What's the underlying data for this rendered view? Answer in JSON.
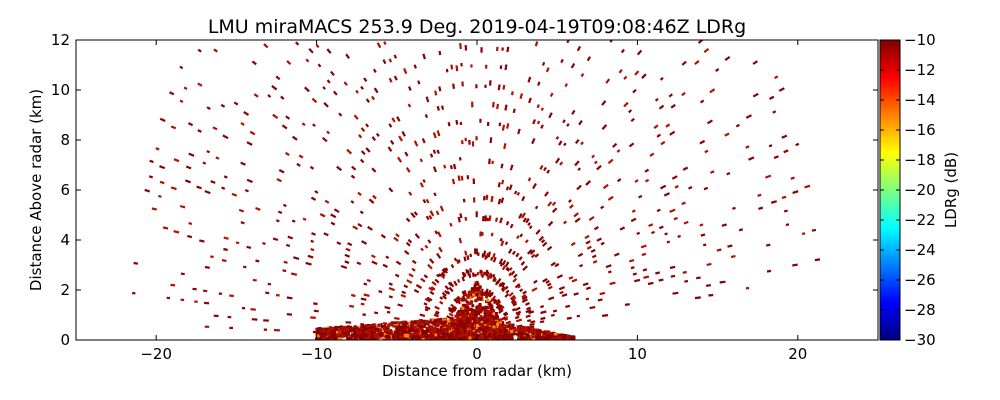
{
  "chart_data": {
    "type": "scatter",
    "title": "LMU miraMACS 253.9 Deg. 2019-04-19T09:08:46Z  LDRg",
    "xlabel": "Distance from radar (km)",
    "ylabel": "Distance Above radar  (km)",
    "xlim": [
      -25,
      25
    ],
    "ylim": [
      0,
      12
    ],
    "x_ticks": [
      "−20",
      "−10",
      "0",
      "10",
      "20"
    ],
    "y_ticks": [
      "0",
      "2",
      "4",
      "6",
      "8",
      "10",
      "12"
    ],
    "grid": false,
    "scan": {
      "azimuth_deg": 253.9,
      "max_range_km": 22,
      "lowest_elevation_deg": 7,
      "ring_spacing_km": 0.75,
      "beam_spacing_deg": 1.6
    },
    "dominant_value_db": -10,
    "colorbar": {
      "label": "LDRg (dB)",
      "range": [
        -30,
        -10
      ],
      "ticks": [
        "−10",
        "−12",
        "−14",
        "−16",
        "−18",
        "−20",
        "−22",
        "−24",
        "−26",
        "−28",
        "−30"
      ],
      "colormap": "jet",
      "colors": [
        "#00007f",
        "#0000ff",
        "#0080ff",
        "#00ffff",
        "#80ff80",
        "#ffff00",
        "#ff8000",
        "#ff0000",
        "#7f0000"
      ]
    },
    "colors": {
      "signal": "#8b0000",
      "signal_alt": "#b01000",
      "highlight": "#ff8c00"
    }
  }
}
